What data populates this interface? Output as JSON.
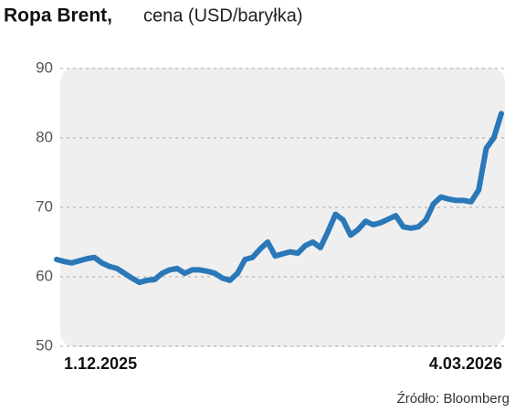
{
  "chart_data": {
    "type": "line",
    "title": "Ropa Brent,",
    "subtitle": "cena (USD/baryłka)",
    "source": "Źródło: Bloomberg",
    "categories": [
      "1.12.2025",
      null,
      null,
      null,
      null,
      null,
      null,
      null,
      null,
      null,
      null,
      null,
      null,
      null,
      null,
      null,
      null,
      null,
      null,
      null,
      null,
      null,
      null,
      null,
      null,
      null,
      null,
      null,
      null,
      null,
      null,
      null,
      null,
      null,
      null,
      null,
      null,
      null,
      null,
      null,
      null,
      null,
      null,
      null,
      null,
      null,
      null,
      null,
      null,
      null,
      null,
      null,
      null,
      null,
      null,
      null,
      null,
      null,
      null,
      "4.03.2026"
    ],
    "series": [
      {
        "color": "#2a78b8",
        "values": [
          62.5,
          62.2,
          62.0,
          62.3,
          62.6,
          62.8,
          62.0,
          61.5,
          61.2,
          60.5,
          59.8,
          59.2,
          59.5,
          59.6,
          60.5,
          61.0,
          61.2,
          60.5,
          61.0,
          61.0,
          60.8,
          60.5,
          59.8,
          59.5,
          60.5,
          62.5,
          62.8,
          64.0,
          65.0,
          63.0,
          63.3,
          63.6,
          63.4,
          64.5,
          65.0,
          64.2,
          66.5,
          69.0,
          68.2,
          66.0,
          66.8,
          68.0,
          67.5,
          67.8,
          68.3,
          68.8,
          67.2,
          67.0,
          67.2,
          68.2,
          70.5,
          71.5,
          71.2,
          71.0,
          71.0,
          70.8,
          72.5,
          78.5,
          80.0,
          83.5
        ]
      }
    ],
    "ylim": [
      50,
      90
    ],
    "yticks": [
      50,
      60,
      70,
      80,
      90
    ],
    "grid": true
  }
}
